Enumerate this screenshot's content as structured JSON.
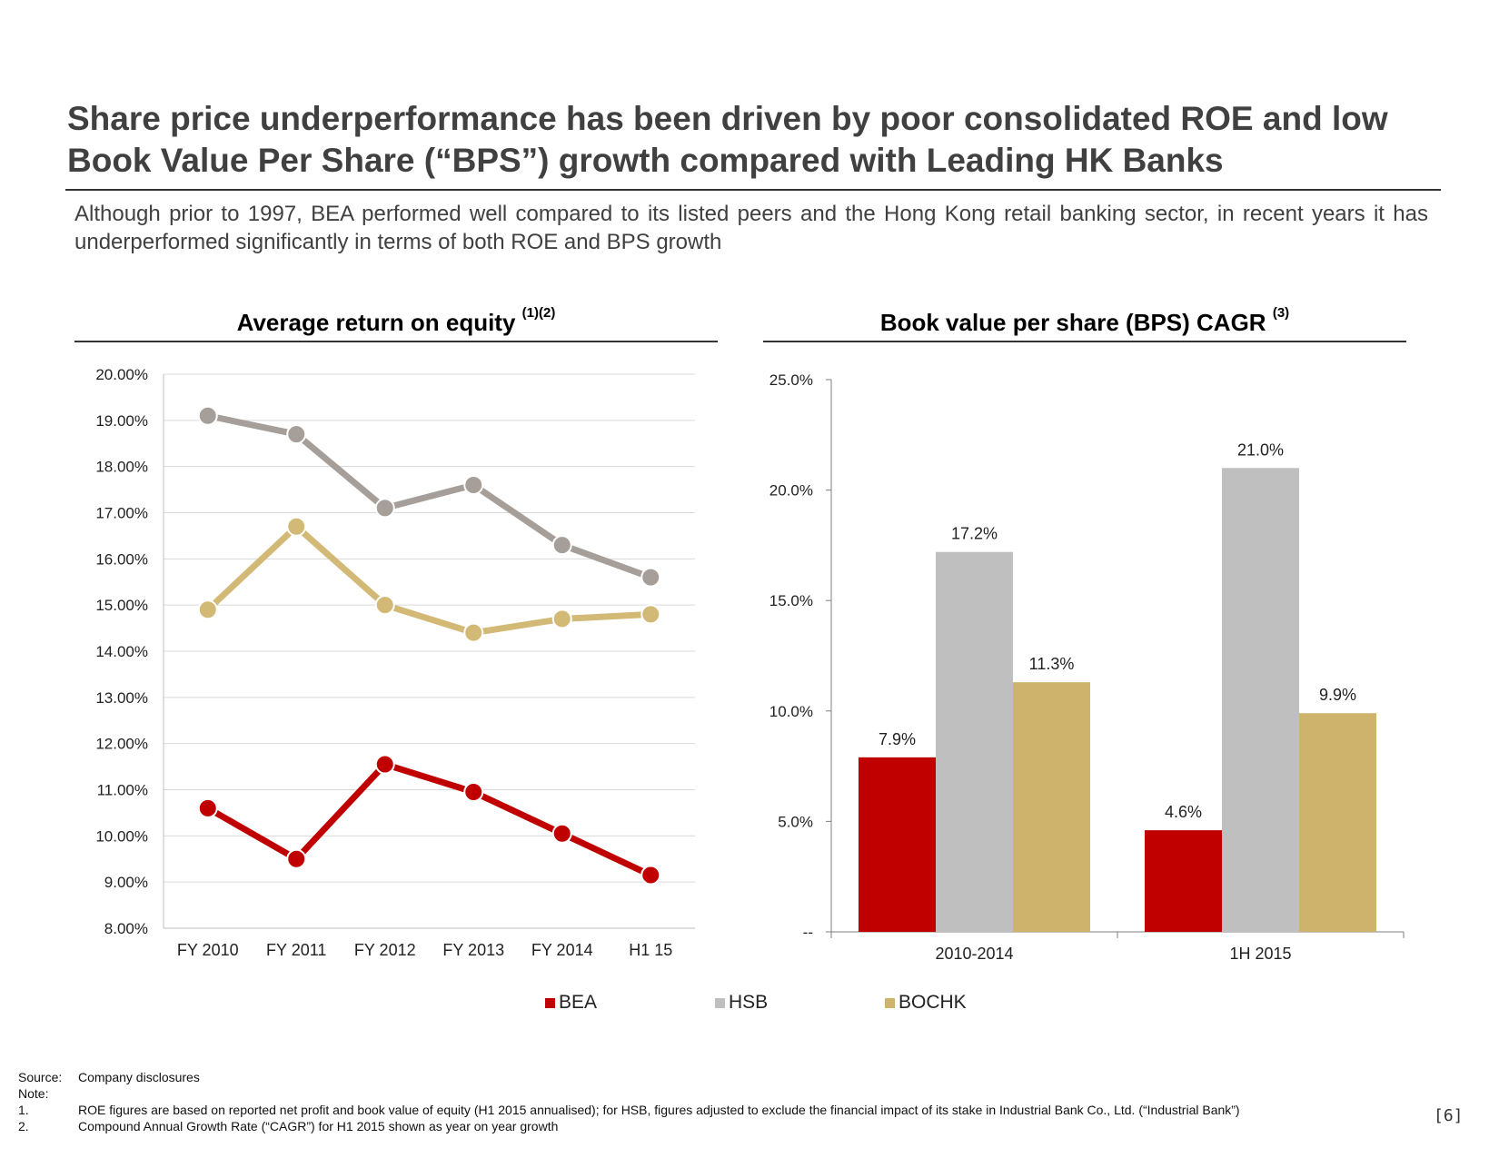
{
  "header": {
    "title": "Share price underperformance has been driven by poor consolidated ROE and low Book Value Per Share (“BPS”) growth compared with Leading HK Banks",
    "subtitle": "Although prior to 1997, BEA performed well compared to its listed peers and the Hong Kong retail banking sector, in recent years it has underperformed significantly in terms of both ROE and BPS growth"
  },
  "colors": {
    "BEA": "#C00000",
    "HSB": "#BFBFBF",
    "BOCHK": "#CDB36B",
    "HSB_line": "#A59E99",
    "BOCHK_line": "#D2BA76"
  },
  "chart_data": [
    {
      "type": "line",
      "title": "Average return on equity",
      "title_superscript": "(1)(2)",
      "categories": [
        "FY 2010",
        "FY 2011",
        "FY 2012",
        "FY 2013",
        "FY 2014",
        "H1 15"
      ],
      "series": [
        {
          "name": "HSB",
          "values": [
            19.1,
            18.7,
            17.1,
            17.6,
            16.3,
            15.6
          ]
        },
        {
          "name": "BOCHK",
          "values": [
            14.9,
            16.7,
            15.0,
            14.4,
            14.7,
            14.8
          ]
        },
        {
          "name": "BEA",
          "values": [
            10.6,
            9.5,
            11.55,
            10.95,
            10.05,
            9.15
          ]
        }
      ],
      "ylim": [
        8,
        20
      ],
      "yticks": [
        20,
        19,
        18,
        17,
        16,
        15,
        14,
        13,
        12,
        11,
        10,
        9,
        8
      ],
      "ytick_labels": [
        "20.00%",
        "19.00%",
        "18.00%",
        "17.00%",
        "16.00%",
        "15.00%",
        "14.00%",
        "13.00%",
        "12.00%",
        "11.00%",
        "10.00%",
        "9.00%",
        "8.00%"
      ],
      "grid": true
    },
    {
      "type": "bar",
      "title": "Book value per share (BPS) CAGR",
      "title_superscript": "(3)",
      "categories": [
        "2010-2014",
        "1H 2015"
      ],
      "series": [
        {
          "name": "BEA",
          "values": [
            7.9,
            4.6
          ],
          "labels": [
            "7.9%",
            "4.6%"
          ]
        },
        {
          "name": "HSB",
          "values": [
            17.2,
            21.0
          ],
          "labels": [
            "17.2%",
            "21.0%"
          ]
        },
        {
          "name": "BOCHK",
          "values": [
            11.3,
            9.9
          ],
          "labels": [
            "11.3%",
            "9.9%"
          ]
        }
      ],
      "ylim": [
        0,
        25
      ],
      "yticks": [
        25,
        20,
        15,
        10,
        5,
        0
      ],
      "ytick_labels": [
        "25.0%",
        "20.0%",
        "15.0%",
        "10.0%",
        "5.0%",
        "--"
      ],
      "grid": false
    }
  ],
  "legend": [
    "BEA",
    "HSB",
    "BOCHK"
  ],
  "footnotes": {
    "source_label": "Source:",
    "source_text": "Company disclosures",
    "note_label": "Note:",
    "notes": [
      {
        "num": "1.",
        "text": "ROE figures are based on reported net profit and book value of equity (H1 2015 annualised); for HSB, figures adjusted to exclude the financial impact of its stake in Industrial Bank Co., Ltd. (“Industrial Bank”)"
      },
      {
        "num": "2.",
        "text": "Compound Annual Growth Rate (“CAGR”) for H1 2015 shown as year on year growth"
      }
    ]
  },
  "page_number": "[6]"
}
